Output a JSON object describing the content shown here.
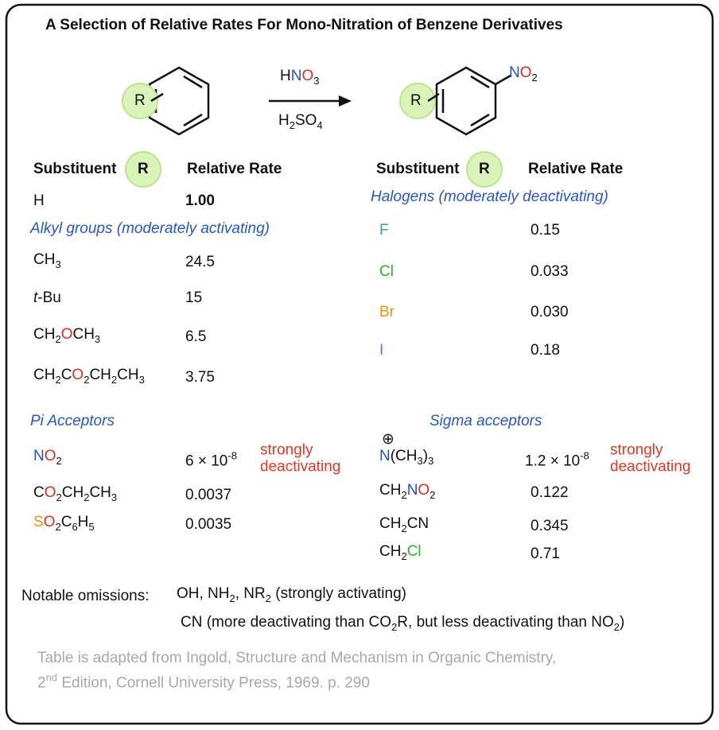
{
  "title": "A Selection of Relative Rates For Mono-Nitration of Benzene Derivatives",
  "reaction": {
    "reactant_label": "R",
    "reagent_top": [
      {
        "text": "H"
      },
      {
        "text": "N",
        "color": "#1d4fe6"
      },
      {
        "text": "O",
        "color": "#e8291c"
      },
      {
        "text": "3",
        "sub": true
      }
    ],
    "reagent_bottom": [
      {
        "text": "H"
      },
      {
        "text": "2",
        "sub": true
      },
      {
        "text": "SO"
      },
      {
        "text": "4",
        "sub": true
      }
    ],
    "product_label": "R",
    "product_group": [
      {
        "text": "N",
        "color": "#1d4fe6"
      },
      {
        "text": "O",
        "color": "#e8291c"
      },
      {
        "text": "2",
        "sub": true
      }
    ]
  },
  "left": {
    "header": {
      "substituent": "Substituent",
      "r": "R",
      "rate": "Relative Rate"
    },
    "rows": [
      {
        "formula": [
          {
            "text": "H"
          }
        ],
        "rate": [
          {
            "text": "1.00",
            "bold": true
          }
        ]
      },
      {
        "section": "Alkyl groups (moderately activating)"
      },
      {
        "formula": [
          {
            "text": "CH"
          },
          {
            "text": "3",
            "sub": true
          }
        ],
        "rate": [
          {
            "text": "24.5"
          }
        ]
      },
      {
        "formula": [
          {
            "text": "t",
            "italic": true
          },
          {
            "text": "-Bu"
          }
        ],
        "rate": [
          {
            "text": "15"
          }
        ]
      },
      {
        "formula": [
          {
            "text": "CH"
          },
          {
            "text": "2",
            "sub": true
          },
          {
            "text": "O",
            "color": "#e8291c"
          },
          {
            "text": "CH"
          },
          {
            "text": "3",
            "sub": true
          }
        ],
        "rate": [
          {
            "text": "6.5"
          }
        ]
      },
      {
        "formula": [
          {
            "text": "CH"
          },
          {
            "text": "2",
            "sub": true
          },
          {
            "text": "C"
          },
          {
            "text": "O",
            "color": "#e8291c"
          },
          {
            "text": "2",
            "sub": true
          },
          {
            "text": "CH"
          },
          {
            "text": "2",
            "sub": true
          },
          {
            "text": "CH"
          },
          {
            "text": "3",
            "sub": true
          }
        ],
        "rate": [
          {
            "text": "3.75"
          }
        ]
      },
      {
        "section": "Pi Acceptors"
      },
      {
        "formula": [
          {
            "text": "N",
            "color": "#1d4fe6"
          },
          {
            "text": "O",
            "color": "#e8291c"
          },
          {
            "text": "2",
            "sub": true
          }
        ],
        "rate": [
          {
            "text": "6 × 10"
          },
          {
            "text": "-8",
            "sup": true
          }
        ],
        "note": [
          "strongly",
          "deactivating"
        ]
      },
      {
        "formula": [
          {
            "text": "C"
          },
          {
            "text": "O",
            "color": "#e8291c"
          },
          {
            "text": "2",
            "sub": true
          },
          {
            "text": "CH"
          },
          {
            "text": "2",
            "sub": true
          },
          {
            "text": "CH"
          },
          {
            "text": "3",
            "sub": true
          }
        ],
        "rate": [
          {
            "text": "0.0037"
          }
        ]
      },
      {
        "formula": [
          {
            "text": "S",
            "color": "#f39200"
          },
          {
            "text": "O",
            "color": "#e8291c"
          },
          {
            "text": "2",
            "sub": true
          },
          {
            "text": "C"
          },
          {
            "text": "6",
            "sub": true
          },
          {
            "text": "H"
          },
          {
            "text": "5",
            "sub": true
          }
        ],
        "rate": [
          {
            "text": "0.0035"
          }
        ]
      }
    ]
  },
  "right": {
    "header": {
      "substituent": "Substituent",
      "r": "R",
      "rate": "Relative Rate"
    },
    "rows": [
      {
        "section": "Halogens (moderately deactivating)"
      },
      {
        "formula": [
          {
            "text": "F",
            "color": "#2aa6a6"
          }
        ],
        "rate": [
          {
            "text": "0.15"
          }
        ]
      },
      {
        "formula": [
          {
            "text": "Cl",
            "color": "#22bb22"
          }
        ],
        "rate": [
          {
            "text": "0.033"
          }
        ]
      },
      {
        "formula": [
          {
            "text": "Br",
            "color": "#f39200"
          }
        ],
        "rate": [
          {
            "text": "0.030"
          }
        ]
      },
      {
        "formula": [
          {
            "text": "I",
            "color": "#b050d0"
          }
        ],
        "rate": [
          {
            "text": "0.18"
          }
        ]
      },
      {
        "section": "Sigma acceptors"
      },
      {
        "charge": "⊕",
        "formula": [
          {
            "text": "N",
            "color": "#1d4fe6"
          },
          {
            "text": "(CH"
          },
          {
            "text": "3",
            "sub": true
          },
          {
            "text": ")"
          },
          {
            "text": "3",
            "sub": true
          }
        ],
        "rate": [
          {
            "text": "1.2 × 10"
          },
          {
            "text": "-8",
            "sup": true
          }
        ],
        "note": [
          "strongly",
          "deactivating"
        ]
      },
      {
        "formula": [
          {
            "text": "CH"
          },
          {
            "text": "2",
            "sub": true
          },
          {
            "text": "N",
            "color": "#1d4fe6"
          },
          {
            "text": "O",
            "color": "#e8291c"
          },
          {
            "text": "2",
            "sub": true
          }
        ],
        "rate": [
          {
            "text": "0.122"
          }
        ]
      },
      {
        "formula": [
          {
            "text": "CH"
          },
          {
            "text": "2",
            "sub": true
          },
          {
            "text": "CN"
          }
        ],
        "rate": [
          {
            "text": "0.345"
          }
        ]
      },
      {
        "formula": [
          {
            "text": "CH"
          },
          {
            "text": "2",
            "sub": true
          },
          {
            "text": "Cl",
            "color": "#22bb22"
          }
        ],
        "rate": [
          {
            "text": "0.71"
          }
        ]
      }
    ]
  },
  "omissions": {
    "label": "Notable omissions:",
    "lines": [
      [
        {
          "text": "OH, NH"
        },
        {
          "text": "2",
          "sub": true
        },
        {
          "text": ", NR"
        },
        {
          "text": "2",
          "sub": true
        },
        {
          "text": " (strongly activating)"
        }
      ],
      [
        {
          "text": "CN (more deactivating than CO"
        },
        {
          "text": "2",
          "sub": true
        },
        {
          "text": "R, but less deactivating than NO"
        },
        {
          "text": "2",
          "sub": true
        },
        {
          "text": ")"
        }
      ]
    ]
  },
  "footer": [
    [
      {
        "text": "Table is adapted from Ingold, Structure and Mechanism in Organic Chemistry,"
      }
    ],
    [
      {
        "text": "2"
      },
      {
        "text": "nd",
        "sup": true
      },
      {
        "text": " Edition, Cornell University Press, 1969. p. 290"
      }
    ]
  ]
}
